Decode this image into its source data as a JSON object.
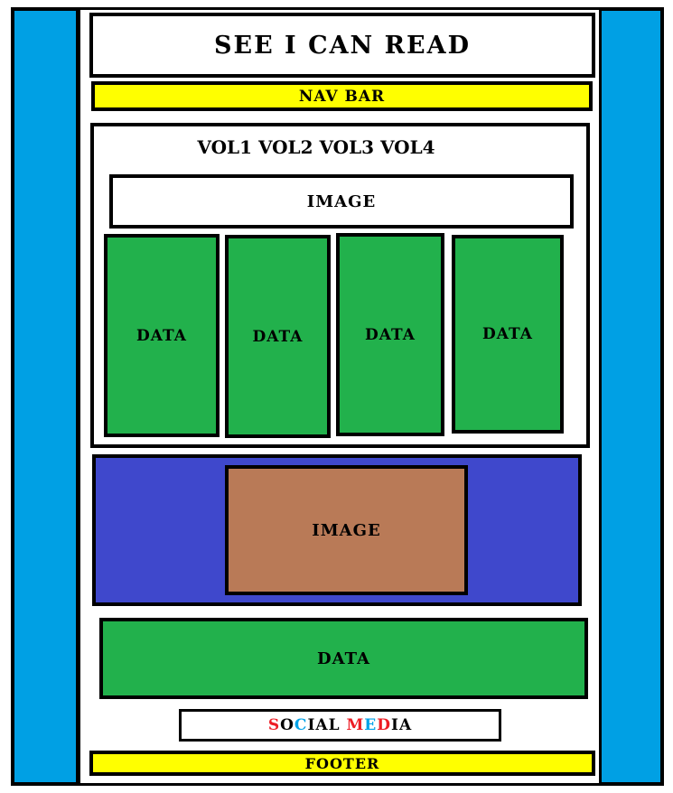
{
  "colors": {
    "side_panel": "#00a0e4",
    "nav_yellow": "#ffff00",
    "data_green": "#22b14c",
    "banner_blue": "#3f48cc",
    "image_brown": "#b97a57",
    "social_red": "#ed1c24",
    "social_blue": "#00a2e8"
  },
  "header": {
    "title": "SEE I CAN READ"
  },
  "nav": {
    "label": "NAV BAR"
  },
  "volumes": {
    "label": "VOL1 VOL2 VOL3 VOL4"
  },
  "top_image": {
    "label": "IMAGE"
  },
  "data_columns": [
    {
      "label": "DATA"
    },
    {
      "label": "DATA"
    },
    {
      "label": "DATA"
    },
    {
      "label": "DATA"
    }
  ],
  "banner_image": {
    "label": "IMAGE"
  },
  "data_wide": {
    "label": "DATA"
  },
  "social": {
    "parts": [
      {
        "text": "S",
        "color": "red"
      },
      {
        "text": "O",
        "color": "black"
      },
      {
        "text": "C",
        "color": "blue"
      },
      {
        "text": "IAL ",
        "color": "black"
      },
      {
        "text": "M",
        "color": "red"
      },
      {
        "text": "E",
        "color": "blue"
      },
      {
        "text": "D",
        "color": "red"
      },
      {
        "text": "IA",
        "color": "black"
      }
    ]
  },
  "footer": {
    "label": "FOOTER"
  }
}
